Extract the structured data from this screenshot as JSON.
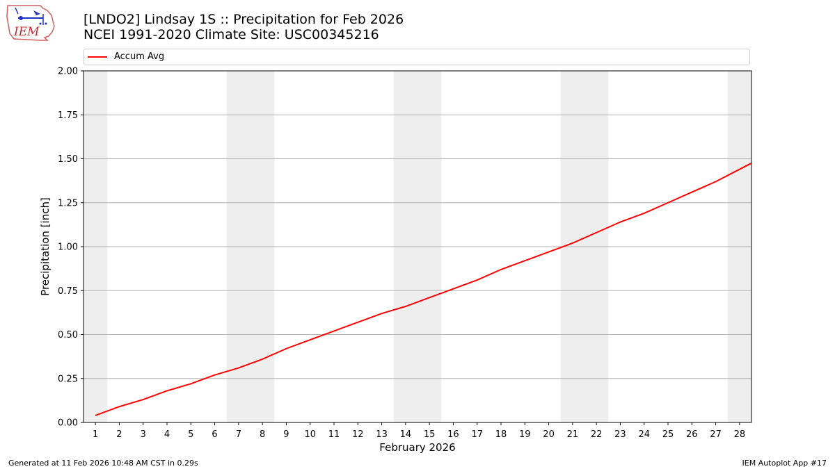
{
  "header": {
    "logo_text": "IEM",
    "title_line1": "[LNDO2] Lindsay 1S :: Precipitation for Feb 2026",
    "title_line2": "NCEI 1991-2020 Climate Site: USC00345216"
  },
  "legend": {
    "label": "Accum Avg",
    "color": "#ff0000"
  },
  "footer": {
    "left": "Generated at 11 Feb 2026 10:48 AM CST in 0.29s",
    "right": "IEM Autoplot App #17"
  },
  "chart_data": {
    "type": "line",
    "xlabel": "February 2026",
    "ylabel": "Precipitation [inch]",
    "xlim": [
      0.5,
      28.5
    ],
    "ylim": [
      0,
      2.0
    ],
    "x": [
      1,
      2,
      3,
      4,
      5,
      6,
      7,
      8,
      9,
      10,
      11,
      12,
      13,
      14,
      15,
      16,
      17,
      18,
      19,
      20,
      21,
      22,
      23,
      24,
      25,
      26,
      27,
      28
    ],
    "x_tick_labels": [
      "1",
      "2",
      "3",
      "4",
      "5",
      "6",
      "7",
      "8",
      "9",
      "10",
      "11",
      "12",
      "13",
      "14",
      "15",
      "16",
      "17",
      "18",
      "19",
      "20",
      "21",
      "22",
      "23",
      "24",
      "25",
      "26",
      "27",
      "28"
    ],
    "y_ticks": [
      0.0,
      0.25,
      0.5,
      0.75,
      1.0,
      1.25,
      1.5,
      1.75,
      2.0
    ],
    "y_tick_labels": [
      "0.00",
      "0.25",
      "0.50",
      "0.75",
      "1.00",
      "1.25",
      "1.50",
      "1.75",
      "2.00"
    ],
    "grid": "horizontal",
    "weekend_shading": [
      [
        0.5,
        1.5
      ],
      [
        6.5,
        8.5
      ],
      [
        13.5,
        15.5
      ],
      [
        20.5,
        22.5
      ],
      [
        27.5,
        28.5
      ]
    ],
    "shading_color": "#eeeeee",
    "series": [
      {
        "name": "Accum Avg",
        "color": "#ff0000",
        "values": [
          0.04,
          0.09,
          0.13,
          0.18,
          0.22,
          0.27,
          0.31,
          0.36,
          0.42,
          0.47,
          0.52,
          0.57,
          0.62,
          0.66,
          0.71,
          0.76,
          0.81,
          0.87,
          0.92,
          0.97,
          1.02,
          1.08,
          1.14,
          1.19,
          1.25,
          1.31,
          1.37,
          1.44
        ]
      }
    ],
    "last_value_at_right_edge": 1.475
  }
}
